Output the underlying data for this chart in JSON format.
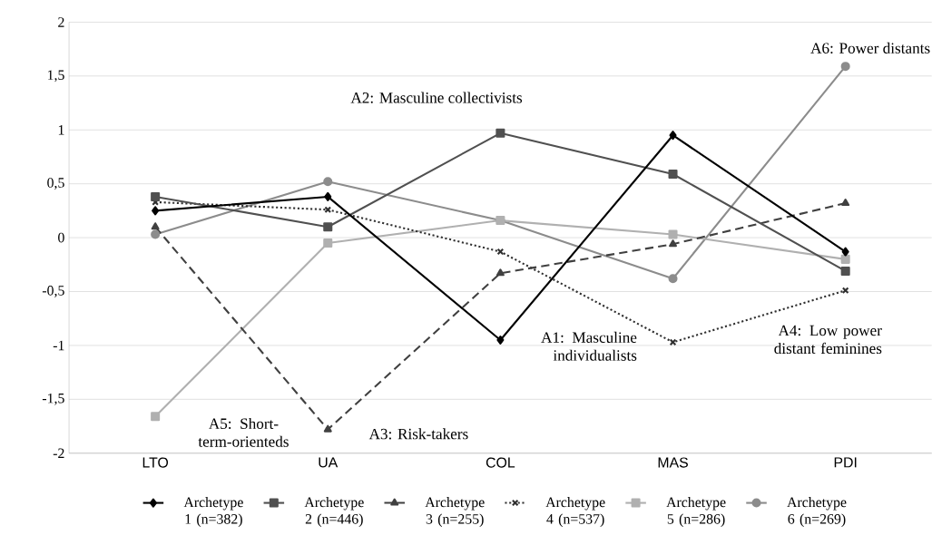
{
  "chart_data": {
    "type": "line",
    "categories": [
      "LTO",
      "UA",
      "COL",
      "MAS",
      "PDI"
    ],
    "ylim": [
      -2,
      2
    ],
    "yticks": [
      {
        "value": -2,
        "label": "-2"
      },
      {
        "value": -1.5,
        "label": "-1,5"
      },
      {
        "value": -1,
        "label": "-1"
      },
      {
        "value": -0.5,
        "label": "-0,5"
      },
      {
        "value": 0,
        "label": "0"
      },
      {
        "value": 0.5,
        "label": "0,5"
      },
      {
        "value": 1,
        "label": "1"
      },
      {
        "value": 1.5,
        "label": "1,5"
      },
      {
        "value": 2,
        "label": "2"
      }
    ],
    "grid": "y",
    "legend": "bottom",
    "series": [
      {
        "name": "Archetype 1 (n=382)",
        "color": "#000000",
        "marker": "diamond",
        "line_style": "solid",
        "values": [
          0.25,
          0.38,
          -0.95,
          0.95,
          -0.13
        ]
      },
      {
        "name": "Archetype 2 (n=446)",
        "color": "#505050",
        "marker": "square",
        "line_style": "solid",
        "values": [
          0.38,
          0.1,
          0.97,
          0.59,
          -0.31
        ]
      },
      {
        "name": "Archetype 3 (n=255)",
        "color": "#404040",
        "marker": "triangle",
        "line_style": "dashed",
        "values": [
          0.1,
          -1.78,
          -0.33,
          -0.06,
          0.32
        ]
      },
      {
        "name": "Archetype 4 (n=537)",
        "color": "#303030",
        "marker": "cross",
        "line_style": "dotted",
        "values": [
          0.33,
          0.26,
          -0.13,
          -0.97,
          -0.49
        ]
      },
      {
        "name": "Archetype 5 (n=286)",
        "color": "#b0b0b0",
        "marker": "square",
        "line_style": "solid",
        "values": [
          -1.66,
          -0.05,
          0.16,
          0.03,
          -0.2
        ]
      },
      {
        "name": "Archetype 6 (n=269)",
        "color": "#8c8c8c",
        "marker": "circle",
        "line_style": "solid",
        "values": [
          0.03,
          0.52,
          0.16,
          -0.38,
          1.59
        ]
      }
    ],
    "annotations": [
      "A1: Masculine individualists",
      "A2: Masculine collectivists",
      "A3: Risk-takers",
      "A4: Low power distant feminines",
      "A5: Short-term-orienteds",
      "A6: Power distants"
    ]
  }
}
